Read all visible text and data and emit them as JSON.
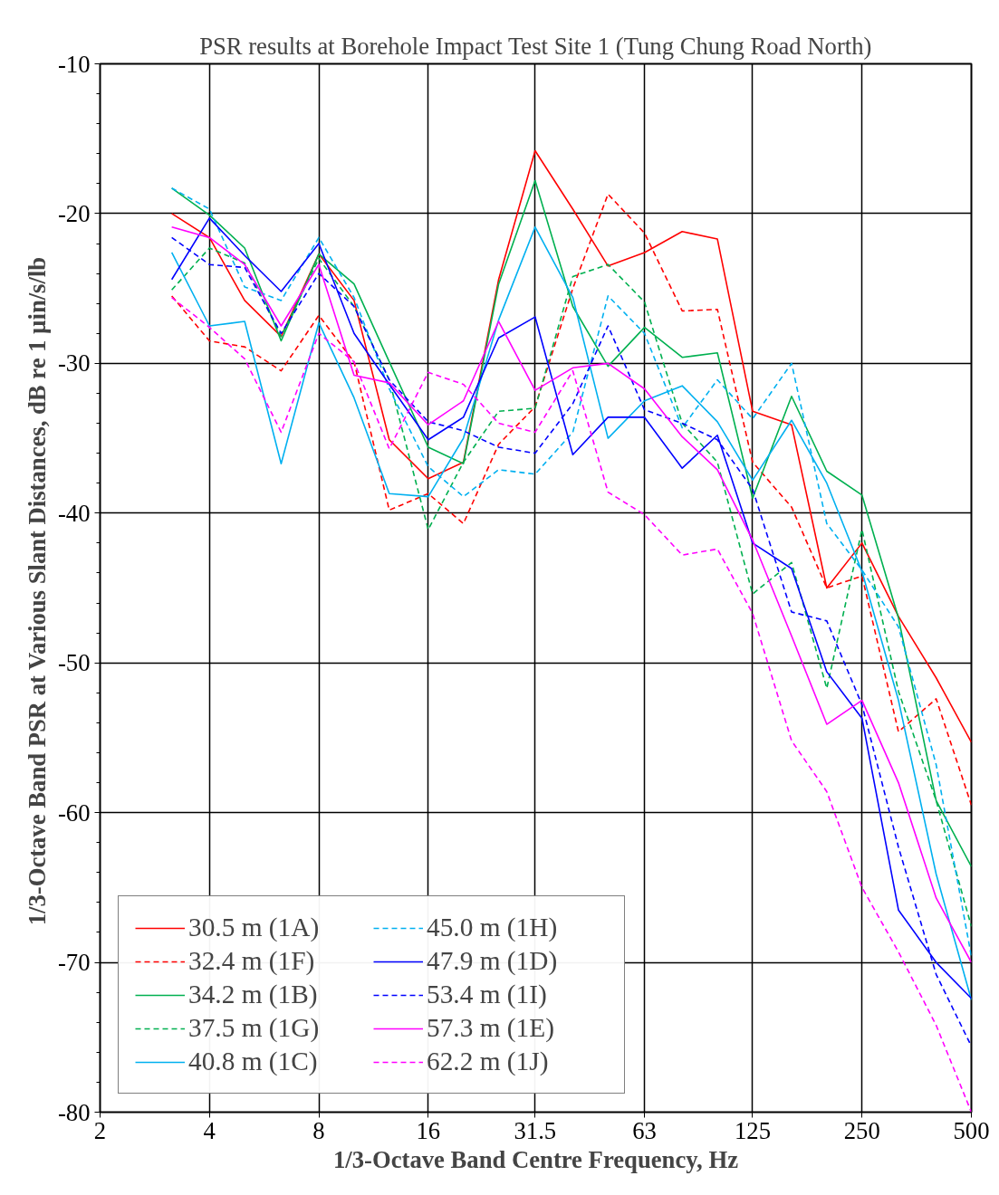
{
  "chart_data": {
    "type": "line",
    "title": "PSR results at Borehole Impact Test Site 1 (Tung Chung Road North)",
    "xlabel": "1/3-Octave Band Centre Frequency, Hz",
    "ylabel": "1/3-Octave Band PSR at Various  Slant Distances, dB re 1 µin/s/lb",
    "log": "x",
    "grid": true,
    "legend": "bottom left",
    "marker": "none",
    "xlim": [
      2,
      500
    ],
    "xticks": [
      2,
      4,
      8,
      16,
      31.5,
      63,
      125,
      250,
      500
    ],
    "ylim": [
      -80,
      -10
    ],
    "yticks": [
      -80,
      -70,
      -60,
      -50,
      -40,
      -30,
      -20,
      -10
    ],
    "x": [
      3.15,
      4,
      5,
      6.3,
      8,
      10,
      12.5,
      16,
      20,
      25,
      31.5,
      40,
      50,
      63,
      80,
      100,
      125,
      160,
      200,
      250,
      315,
      400,
      500
    ],
    "series": [
      {
        "name": "30.5 m (1A)",
        "color": "#ff0000",
        "line_style": "solid",
        "values": [
          -20.0,
          -21.6,
          -25.8,
          -28.2,
          -22.7,
          -25.8,
          -35.1,
          -37.7,
          -36.6,
          -24.4,
          -15.8,
          -19.7,
          -23.5,
          -22.6,
          -21.2,
          -21.7,
          -33.2,
          -34.1,
          -45.0,
          -42.0,
          -46.9,
          -51.0,
          -55.3
        ]
      },
      {
        "name": "32.4 m (1F)",
        "color": "#ff0000",
        "line_style": "dashed",
        "values": [
          -25.5,
          -28.5,
          -28.9,
          -30.5,
          -26.8,
          -29.9,
          -39.8,
          -38.7,
          -40.7,
          -35.4,
          -32.9,
          -25.0,
          -18.7,
          -21.3,
          -26.5,
          -26.4,
          -36.6,
          -39.6,
          -45.0,
          -44.2,
          -54.6,
          -52.4,
          -59.5
        ]
      },
      {
        "name": "34.2 m (1B)",
        "color": "#00b050",
        "line_style": "solid",
        "values": [
          -18.3,
          -20.1,
          -22.3,
          -28.5,
          -22.7,
          -24.7,
          -29.9,
          -35.6,
          -36.7,
          -24.7,
          -17.8,
          -26.2,
          -30.2,
          -27.6,
          -29.6,
          -29.3,
          -39.0,
          -32.2,
          -37.2,
          -38.8,
          -47.0,
          -59.2,
          -63.6
        ]
      },
      {
        "name": "37.5 m (1G)",
        "color": "#00b050",
        "line_style": "dashed",
        "values": [
          -25.1,
          -22.3,
          -23.3,
          -28.2,
          -23.0,
          -26.2,
          -31.1,
          -41.1,
          -36.6,
          -33.2,
          -33.0,
          -24.2,
          -23.4,
          -25.9,
          -34.0,
          -36.6,
          -45.4,
          -43.3,
          -51.7,
          -41.1,
          -51.9,
          -59.2,
          -67.6
        ]
      },
      {
        "name": "40.8 m (1C)",
        "color": "#00b0f0",
        "line_style": "solid",
        "values": [
          -22.6,
          -27.5,
          -27.2,
          -36.7,
          -27.3,
          -32.3,
          -38.7,
          -38.9,
          -35.0,
          -27.1,
          -20.9,
          -25.6,
          -35.0,
          -32.5,
          -31.5,
          -33.9,
          -37.8,
          -33.8,
          -38.0,
          -43.9,
          -52.5,
          -64.1,
          -72.5
        ]
      },
      {
        "name": "45.0 m (1H)",
        "color": "#00b0f0",
        "line_style": "dashed",
        "values": [
          -18.3,
          -19.7,
          -24.9,
          -25.8,
          -21.6,
          -25.6,
          -31.7,
          -36.9,
          -38.9,
          -37.1,
          -37.4,
          -34.6,
          -25.5,
          -28.0,
          -34.3,
          -31.1,
          -33.7,
          -30.0,
          -40.7,
          -43.8,
          -47.6,
          -56.8,
          -69.6
        ]
      },
      {
        "name": "47.9 m (1D)",
        "color": "#0000ff",
        "line_style": "solid",
        "values": [
          -24.4,
          -20.3,
          -22.8,
          -25.2,
          -22.0,
          -28.0,
          -31.4,
          -35.1,
          -33.6,
          -28.3,
          -26.9,
          -36.1,
          -33.6,
          -33.6,
          -37.0,
          -34.8,
          -42.0,
          -43.7,
          -50.6,
          -53.7,
          -66.5,
          -70.0,
          -72.4
        ]
      },
      {
        "name": "53.4 m (1I)",
        "color": "#0000ff",
        "line_style": "dashed",
        "values": [
          -21.6,
          -23.4,
          -23.6,
          -28.0,
          -24.0,
          -26.2,
          -31.1,
          -33.9,
          -34.5,
          -35.6,
          -36.0,
          -32.7,
          -27.5,
          -33.1,
          -34.0,
          -35.1,
          -38.4,
          -46.6,
          -47.2,
          -52.8,
          -62.3,
          -70.8,
          -75.6
        ]
      },
      {
        "name": "57.3 m (1E)",
        "color": "#ff00ff",
        "line_style": "solid",
        "values": [
          -20.9,
          -21.6,
          -23.4,
          -27.5,
          -23.4,
          -30.8,
          -31.3,
          -34.1,
          -32.5,
          -27.2,
          -31.8,
          -30.3,
          -30.0,
          -31.7,
          -34.9,
          -37.1,
          -41.8,
          -48.2,
          -54.1,
          -52.5,
          -58.0,
          -65.7,
          -70.0
        ]
      },
      {
        "name": "62.2 m (1J)",
        "color": "#ff00ff",
        "line_style": "dashed",
        "values": [
          -25.6,
          -27.6,
          -29.7,
          -34.6,
          -28.0,
          -29.9,
          -35.7,
          -30.6,
          -31.4,
          -34.0,
          -34.6,
          -30.5,
          -38.6,
          -40.1,
          -42.8,
          -42.4,
          -46.7,
          -55.2,
          -58.6,
          -65.0,
          -69.3,
          -74.2,
          -80.0
        ]
      }
    ]
  }
}
